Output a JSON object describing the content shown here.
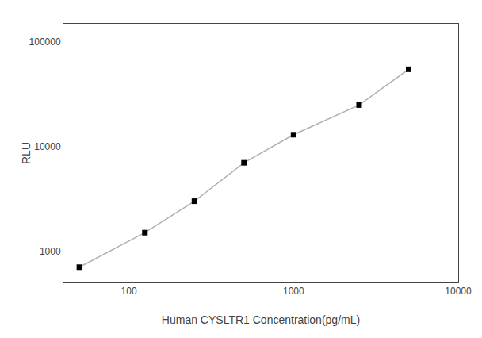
{
  "chart_data": {
    "type": "line",
    "x": [
      50,
      125,
      250,
      500,
      1000,
      2500,
      5000
    ],
    "values": [
      700,
      1500,
      3000,
      7000,
      13000,
      25000,
      55000
    ],
    "xlabel": "Human CYSLTR1 Concentration(pg/mL)",
    "ylabel": "RLU",
    "xlim": [
      40,
      10000
    ],
    "ylim": [
      500,
      150000
    ],
    "xticks": [
      100,
      1000,
      10000
    ],
    "yticks": [
      1000,
      10000,
      100000
    ],
    "log": true,
    "grid": false,
    "color": "#b0b0b0",
    "colors": [
      "black",
      "black",
      "black",
      "black",
      "black",
      "black",
      "black"
    ],
    "marker": "square"
  }
}
